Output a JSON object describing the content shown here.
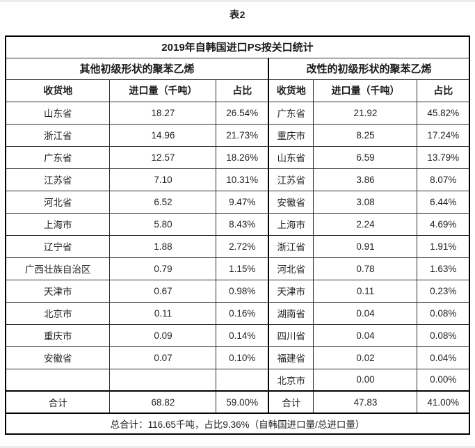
{
  "page": {
    "caption": "表2"
  },
  "colors": {
    "background": "#ffffff",
    "border": "#000000",
    "text": "#1a1a1a"
  },
  "table": {
    "title": "2019年自韩国进口PS按关口统计",
    "sections": [
      {
        "label": "其他初级形状的聚苯乙烯"
      },
      {
        "label": "改性的初级形状的聚苯乙烯"
      }
    ],
    "column_headers": [
      "收货地",
      "进口量（千吨）",
      "占比",
      "收货地",
      "进口量（千吨）",
      "占比"
    ],
    "rows": [
      [
        "山东省",
        "18.27",
        "26.54%",
        "广东省",
        "21.92",
        "45.82%"
      ],
      [
        "浙江省",
        "14.96",
        "21.73%",
        "重庆市",
        "8.25",
        "17.24%"
      ],
      [
        "广东省",
        "12.57",
        "18.26%",
        "山东省",
        "6.59",
        "13.79%"
      ],
      [
        "江苏省",
        "7.10",
        "10.31%",
        "江苏省",
        "3.86",
        "8.07%"
      ],
      [
        "河北省",
        "6.52",
        "9.47%",
        "安徽省",
        "3.08",
        "6.44%"
      ],
      [
        "上海市",
        "5.80",
        "8.43%",
        "上海市",
        "2.24",
        "4.69%"
      ],
      [
        "辽宁省",
        "1.88",
        "2.72%",
        "浙江省",
        "0.91",
        "1.91%"
      ],
      [
        "广西壮族自治区",
        "0.79",
        "1.15%",
        "河北省",
        "0.78",
        "1.63%"
      ],
      [
        "天津市",
        "0.67",
        "0.98%",
        "天津市",
        "0.11",
        "0.23%"
      ],
      [
        "北京市",
        "0.11",
        "0.16%",
        "湖南省",
        "0.04",
        "0.08%"
      ],
      [
        "重庆市",
        "0.09",
        "0.14%",
        "四川省",
        "0.04",
        "0.08%"
      ],
      [
        "安徽省",
        "0.07",
        "0.10%",
        "福建省",
        "0.02",
        "0.04%"
      ],
      [
        "",
        "",
        "",
        "北京市",
        "0.00",
        "0.00%"
      ]
    ],
    "total": [
      "合计",
      "68.82",
      "59.00%",
      "合计",
      "47.83",
      "41.00%"
    ],
    "footer": "总合计：116.65千吨，占比9.36%（自韩国进口量/总进口量）"
  }
}
